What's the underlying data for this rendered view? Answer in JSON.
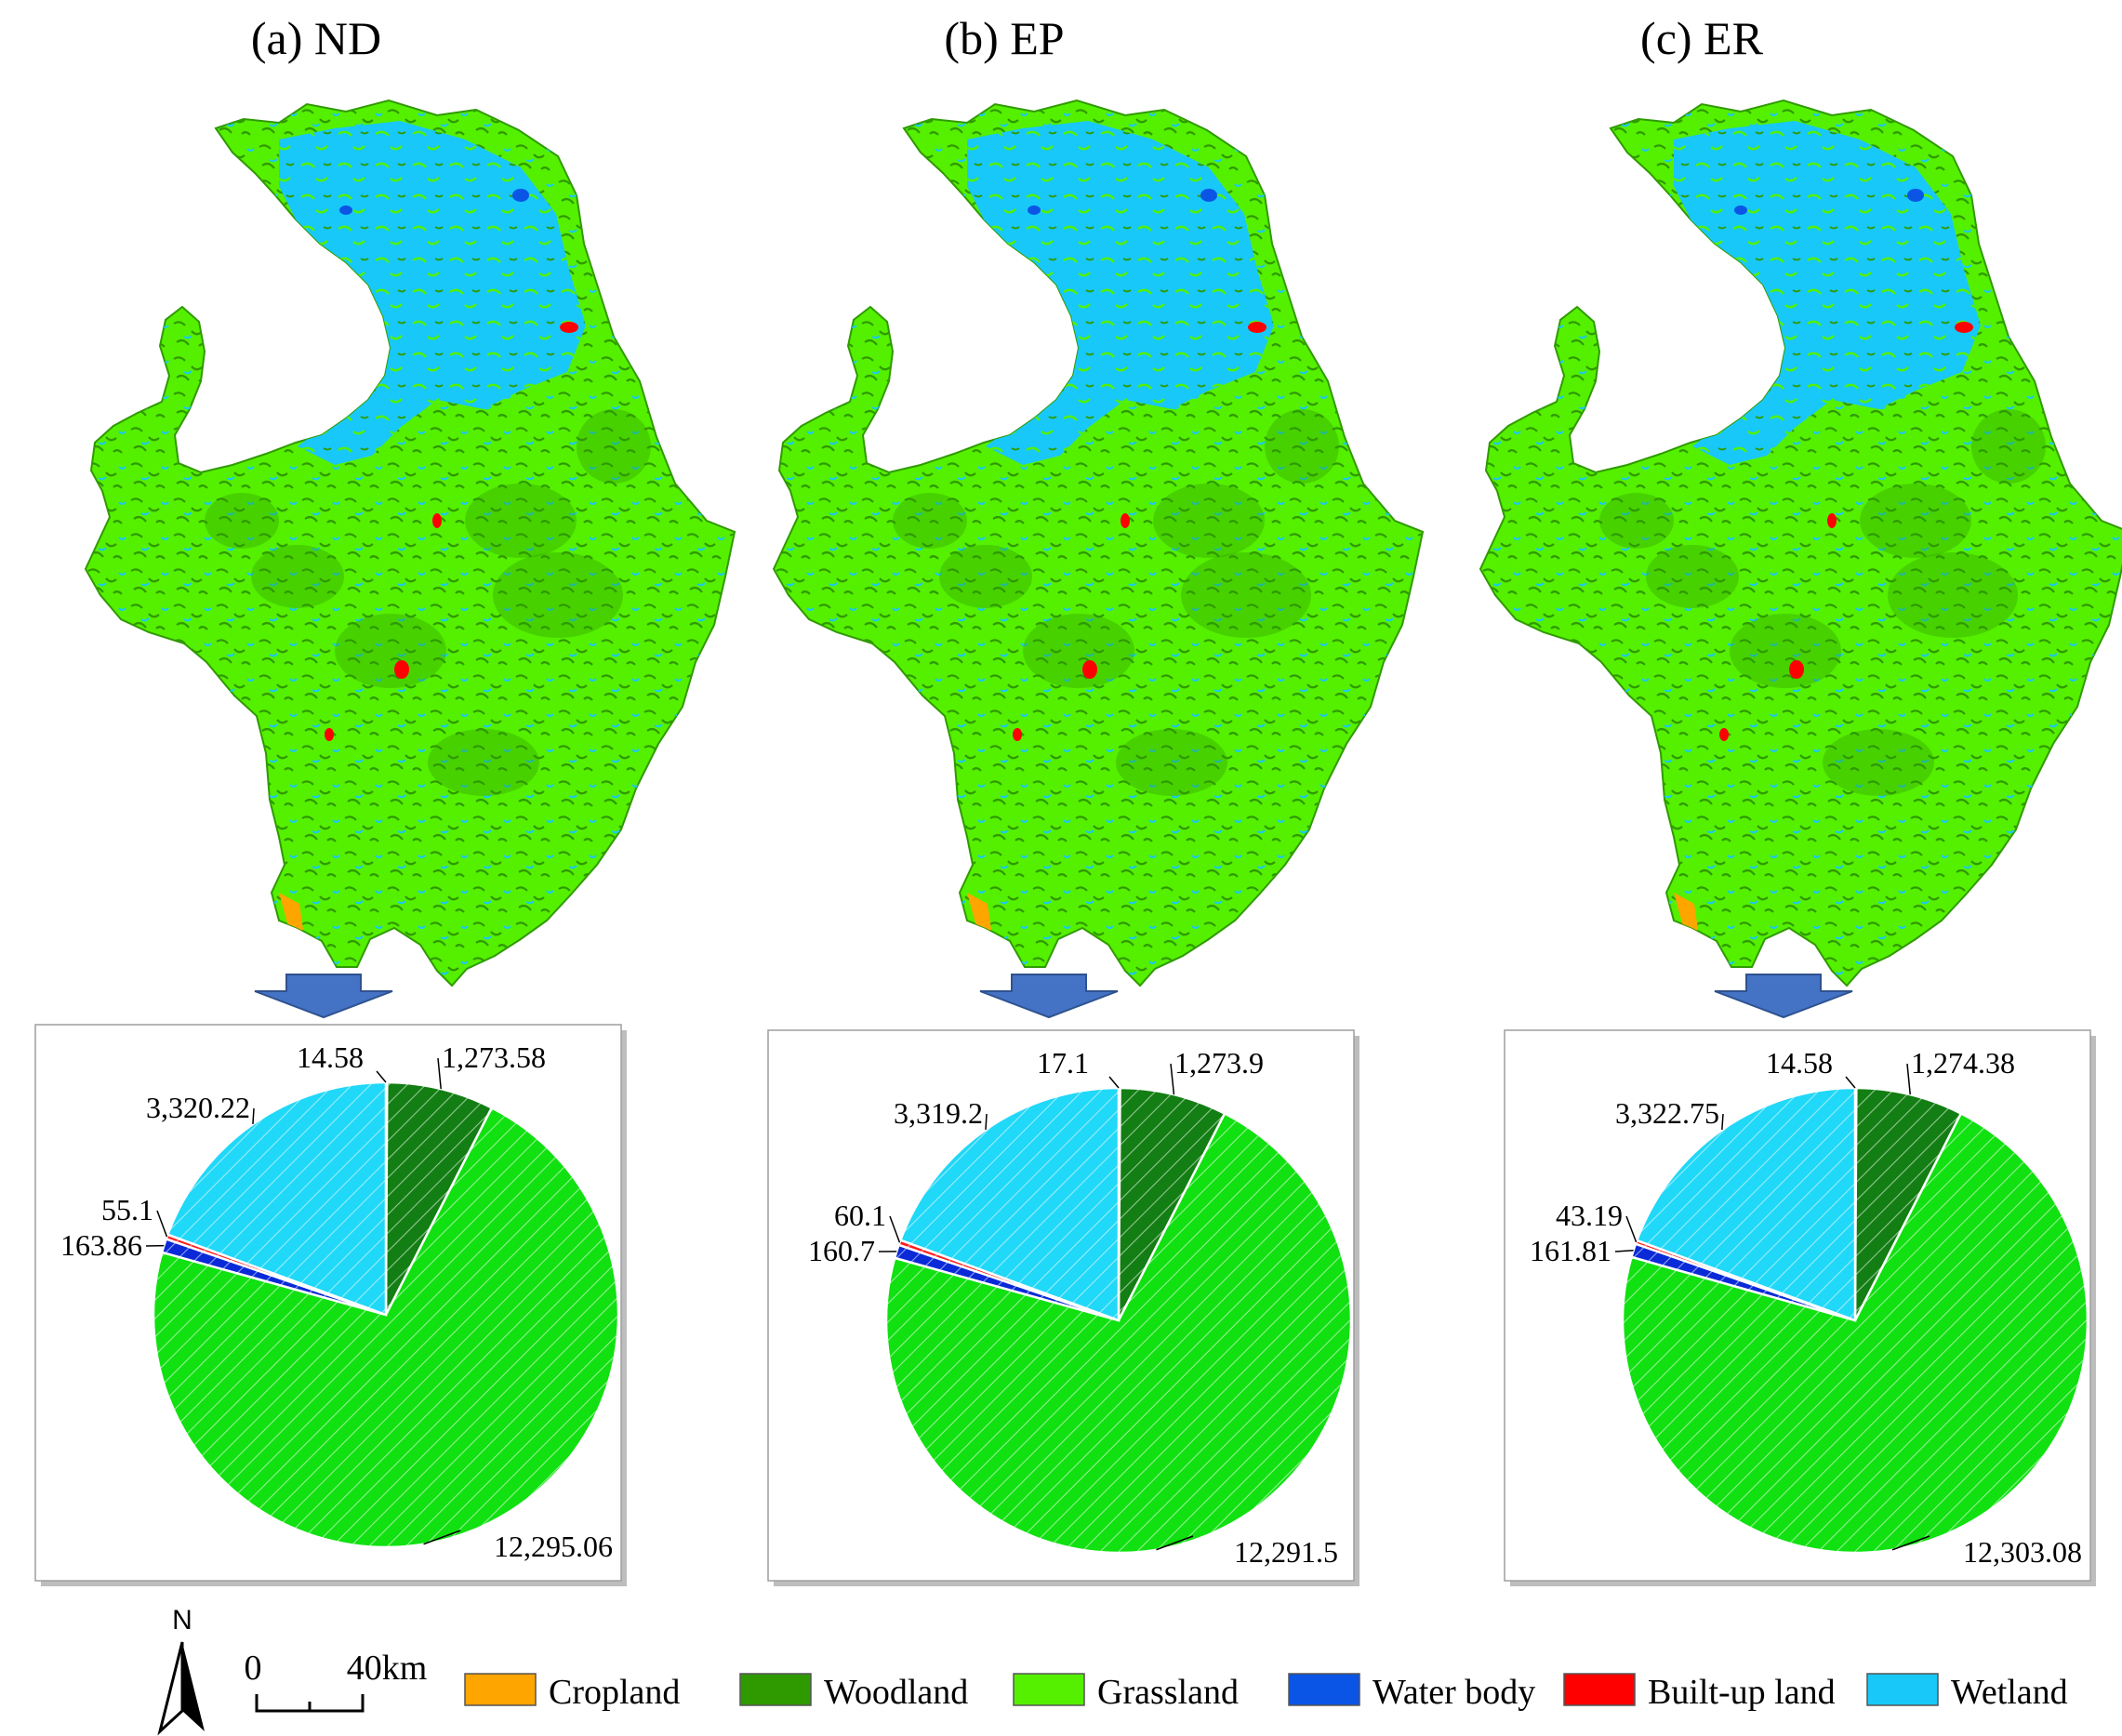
{
  "colors": {
    "cropland": "#ffa500",
    "woodland": "#2f9a00",
    "grassland": "#55f000",
    "water_body": "#0a55e6",
    "built_up": "#ff0000",
    "wetland": "#18c8f8",
    "pie_woodland": "#137e13",
    "pie_grassland": "#11e011",
    "pie_wetland": "#20d8f8",
    "pie_water": "#0a2ad8",
    "pie_built": "#ff2020",
    "pie_cropland": "#ffa500",
    "arrow": "#4472c4"
  },
  "panels": [
    {
      "title": "(a) ND",
      "pie": {
        "cropland": "14.58",
        "woodland": "1,273.58",
        "grassland": "12,295.06",
        "water_body": "163.86",
        "built_up": "55.1",
        "wetland": "3,320.22"
      },
      "values": {
        "cropland": 14.58,
        "woodland": 1273.58,
        "grassland": 12295.06,
        "water_body": 163.86,
        "built_up": 55.1,
        "wetland": 3320.22
      }
    },
    {
      "title": "(b) EP",
      "pie": {
        "cropland": "17.1",
        "woodland": "1,273.9",
        "grassland": "12,291.5",
        "water_body": "160.7",
        "built_up": "60.1",
        "wetland": "3,319.2"
      },
      "values": {
        "cropland": 17.1,
        "woodland": 1273.9,
        "grassland": 12291.5,
        "water_body": 160.7,
        "built_up": 60.1,
        "wetland": 3319.2
      }
    },
    {
      "title": "(c) ER",
      "pie": {
        "cropland": "14.58",
        "woodland": "1,274.38",
        "grassland": "12,303.08",
        "water_body": "161.81",
        "built_up": "43.19",
        "wetland": "3,322.75"
      },
      "values": {
        "cropland": 14.58,
        "woodland": 1274.38,
        "grassland": 12303.08,
        "water_body": 161.81,
        "built_up": 43.19,
        "wetland": 3322.75
      }
    }
  ],
  "legend": {
    "north": "N",
    "scale_zero": "0",
    "scale_max": "40km",
    "items": [
      {
        "label": "Cropland",
        "color": "#ffa500"
      },
      {
        "label": "Woodland",
        "color": "#2f9a00"
      },
      {
        "label": "Grassland",
        "color": "#55f000"
      },
      {
        "label": "Water body",
        "color": "#0a55e6"
      },
      {
        "label": "Built-up land",
        "color": "#ff0000"
      },
      {
        "label": "Wetland",
        "color": "#18c8f8"
      }
    ]
  }
}
